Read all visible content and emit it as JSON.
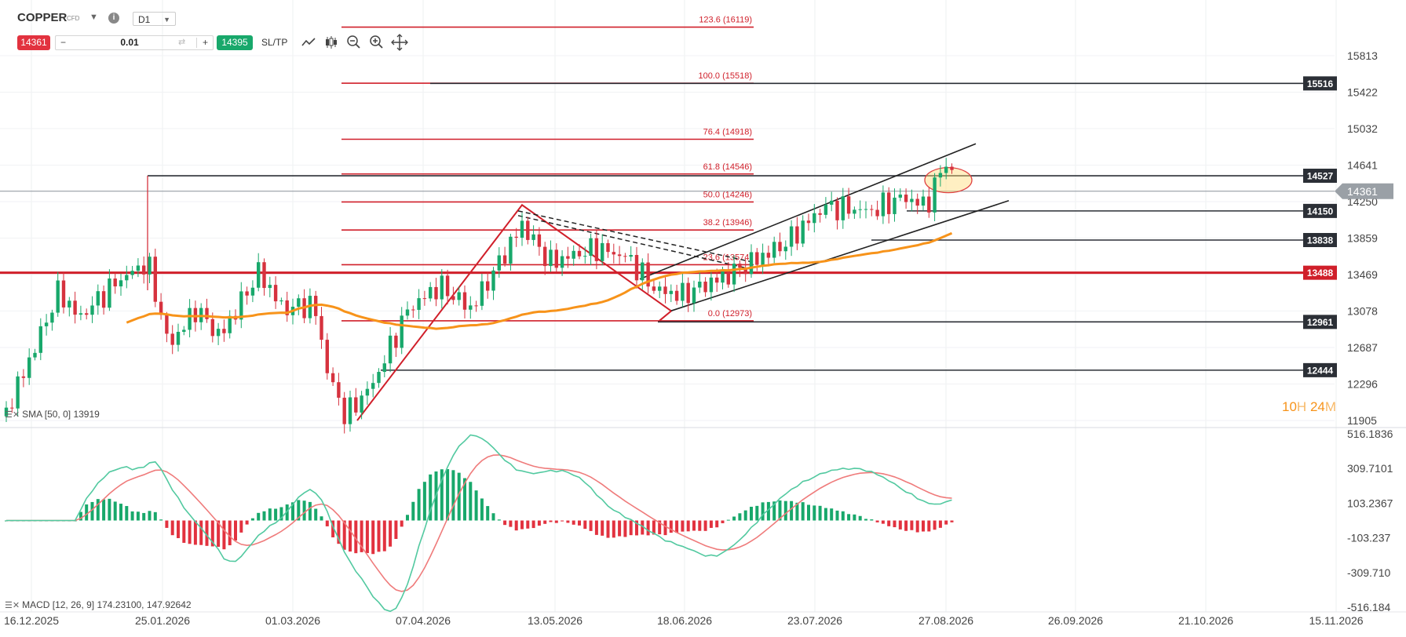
{
  "header": {
    "symbol": "COPPER",
    "symbol_type": "CFD",
    "info_icon": "i",
    "timeframe": "D1",
    "sell_price": "14361",
    "quantity": "0.01",
    "buy_price": "14395",
    "sltp_label": "SL/TP",
    "tool_icons": [
      "line-chart-icon",
      "candles-icon",
      "zoom-out-icon",
      "zoom-in-icon",
      "crosshair-icon"
    ]
  },
  "colors": {
    "up_candle": "#18a86b",
    "down_candle": "#d6323e",
    "sma": "#f7931a",
    "fib": "#d01f2a",
    "support_line": "#2b2f36",
    "current_price": "#8a9199",
    "macd_line": "#52c9a0",
    "signal_line": "#ef7b7b",
    "hist_up": "#18a86b",
    "hist_down": "#e2323f"
  },
  "chart_data": [
    {
      "type": "candlestick",
      "instrument": "COPPER",
      "timeframe": "D1",
      "x_tick_labels": [
        "16.12.2025",
        "25.01.2026",
        "01.03.2026",
        "07.04.2026",
        "13.05.2026",
        "18.06.2026",
        "23.07.2026",
        "27.08.2026",
        "26.09.2026",
        "21.10.2026",
        "15.11.2026"
      ],
      "y_tick_labels": [
        "15813",
        "15422",
        "15032",
        "14641",
        "14250",
        "13859",
        "13469",
        "13078",
        "12687",
        "12296",
        "11905"
      ],
      "ylim": [
        11905,
        15813
      ],
      "price_tags": [
        {
          "value": 15516,
          "label": "15516",
          "style": "dark"
        },
        {
          "value": 14527,
          "label": "14527",
          "style": "dark"
        },
        {
          "value": 14361,
          "label": "14361",
          "style": "current"
        },
        {
          "value": 14150,
          "label": "14150",
          "style": "dark"
        },
        {
          "value": 13838,
          "label": "13838",
          "style": "dark"
        },
        {
          "value": 13488,
          "label": "13488",
          "style": "red"
        },
        {
          "value": 12961,
          "label": "12961",
          "style": "dark"
        },
        {
          "value": 12444,
          "label": "12444",
          "style": "dark"
        }
      ],
      "fibonacci_levels": [
        {
          "label": "123.6 (16119)",
          "value": 16119
        },
        {
          "label": "100.0 (15518)",
          "value": 15518
        },
        {
          "label": "76.4 (14918)",
          "value": 14918
        },
        {
          "label": "61.8 (14546)",
          "value": 14546
        },
        {
          "label": "50.0 (14246)",
          "value": 14246
        },
        {
          "label": "38.2 (13946)",
          "value": 13946
        },
        {
          "label": "23.6 (13574)",
          "value": 13574
        },
        {
          "label": "0.0 (12973)",
          "value": 12973
        }
      ],
      "indicator": {
        "name": "SMA [50, 0]",
        "value": "13919",
        "legend": "SMA [50, 0] 13919"
      },
      "countdown": {
        "hours": "10",
        "hours_unit": "H",
        "minutes": "24",
        "minutes_unit": "M"
      }
    },
    {
      "type": "macd",
      "legend": "MACD [12, 26, 9] 174.23100, 147.92642",
      "params": "12, 26, 9",
      "macd_value": 174.231,
      "signal_value": 147.92642,
      "y_tick_labels": [
        "516.1836",
        "309.7101",
        "103.2367",
        "-103.237",
        "-309.710",
        "-516.184"
      ],
      "ylim": [
        -516.184,
        516.1836
      ]
    }
  ]
}
